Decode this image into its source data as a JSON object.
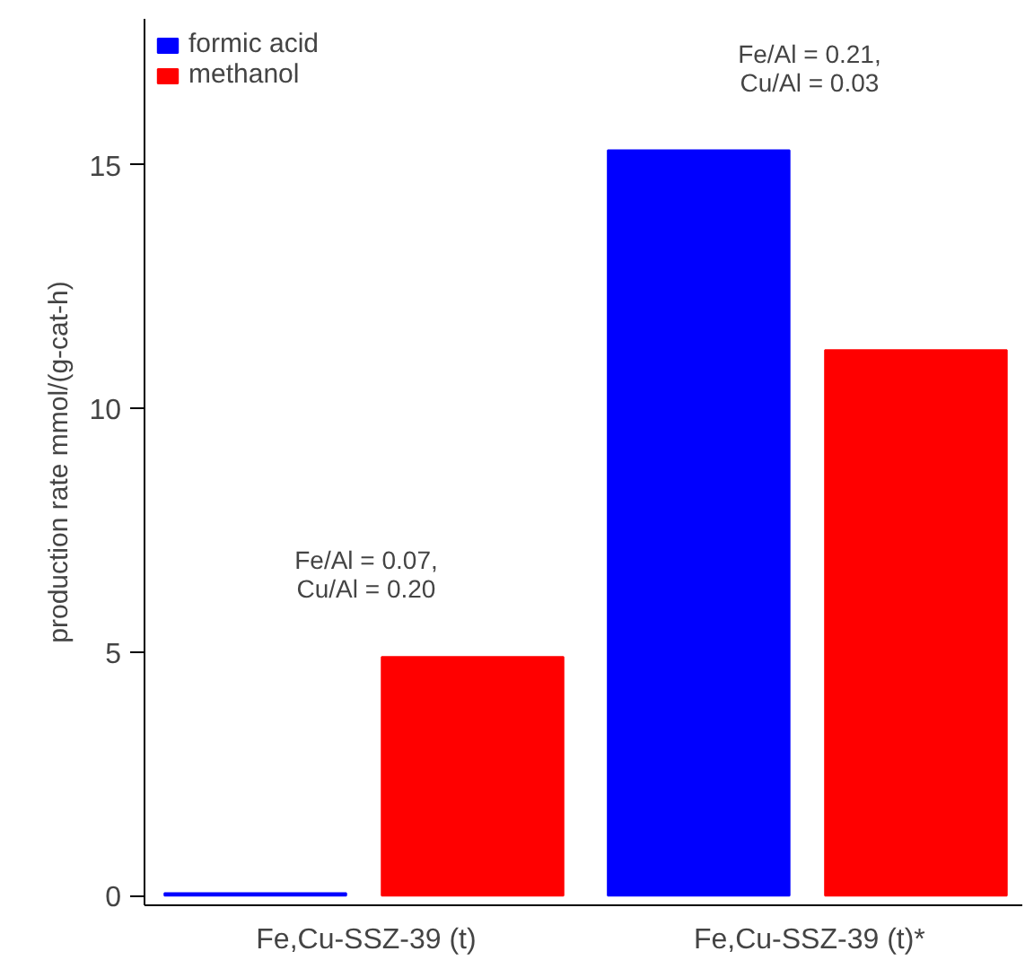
{
  "chart_data": {
    "type": "bar",
    "ylabel": "production rate mmol/(g-cat-h)",
    "categories": [
      "Fe,Cu-SSZ-39 (t)",
      "Fe,Cu-SSZ-39 (t)*"
    ],
    "series": [
      {
        "name": "formic acid",
        "color": "#0000ff",
        "values": [
          0.05,
          15.3
        ]
      },
      {
        "name": "methanol",
        "color": "#ff0000",
        "values": [
          4.9,
          11.2
        ]
      }
    ],
    "ylim": [
      -0.2,
      18
    ],
    "yticks": [
      0,
      5,
      10,
      15
    ],
    "grid": false,
    "legend": "top left",
    "annotations": [
      "Fe/Al = 0.07,\nCu/Al = 0.20",
      "Fe/Al = 0.21,\nCu/Al = 0.03"
    ]
  }
}
